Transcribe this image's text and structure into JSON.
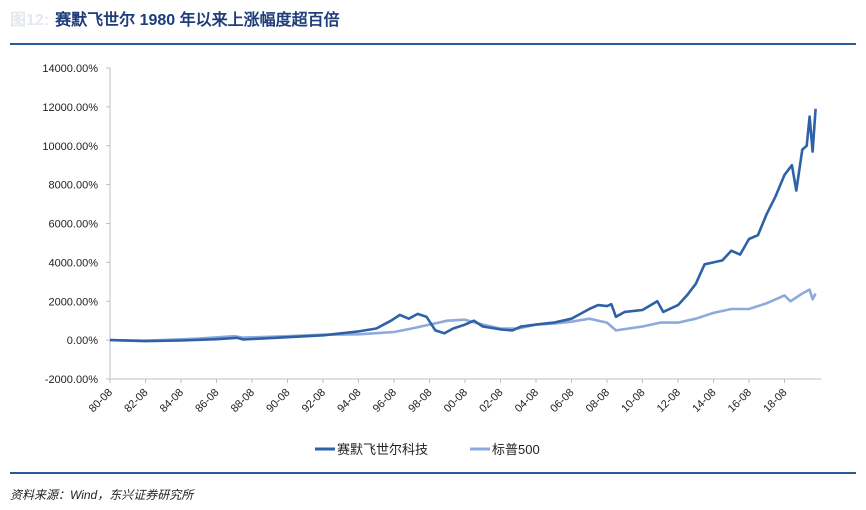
{
  "header": {
    "prefix": "图12:",
    "title": "赛默飞世尔 1980 年以来上涨幅度超百倍"
  },
  "footer": {
    "source": "资料来源：Wind，东兴证券研究所"
  },
  "chart_data": {
    "type": "line",
    "title": "赛默飞世尔 1980 年以来上涨幅度超百倍",
    "ylim": [
      -2000,
      14000
    ],
    "yticks": [
      -2000,
      0,
      2000,
      4000,
      6000,
      8000,
      10000,
      12000,
      14000
    ],
    "ytick_labels": [
      "-2000.00%",
      "0.00%",
      "2000.00%",
      "4000.00%",
      "6000.00%",
      "8000.00%",
      "10000.00%",
      "12000.00%",
      "14000.00%"
    ],
    "xtick_labels": [
      "80-08",
      "82-08",
      "84-08",
      "86-08",
      "88-08",
      "90-08",
      "92-08",
      "94-08",
      "96-08",
      "98-08",
      "00-08",
      "02-08",
      "04-08",
      "06-08",
      "08-08",
      "10-08",
      "12-08",
      "14-08",
      "16-08",
      "18-08"
    ],
    "grid": false,
    "legend": "bottom",
    "series": [
      {
        "name": "赛默飞世尔科技",
        "color": "#2e62a8",
        "points": [
          [
            "1980-08",
            0
          ],
          [
            "1982-08",
            -50
          ],
          [
            "1984-08",
            -20
          ],
          [
            "1986-08",
            50
          ],
          [
            "1987-10",
            120
          ],
          [
            "1988-02",
            30
          ],
          [
            "1990-08",
            150
          ],
          [
            "1992-08",
            250
          ],
          [
            "1994-08",
            450
          ],
          [
            "1995-08",
            600
          ],
          [
            "1996-06",
            1000
          ],
          [
            "1996-12",
            1300
          ],
          [
            "1997-06",
            1100
          ],
          [
            "1997-12",
            1350
          ],
          [
            "1998-06",
            1200
          ],
          [
            "1998-12",
            500
          ],
          [
            "1999-06",
            350
          ],
          [
            "1999-12",
            600
          ],
          [
            "2000-08",
            800
          ],
          [
            "2001-02",
            1000
          ],
          [
            "2001-08",
            700
          ],
          [
            "2002-08",
            550
          ],
          [
            "2003-04",
            500
          ],
          [
            "2003-10",
            700
          ],
          [
            "2004-08",
            800
          ],
          [
            "2005-08",
            900
          ],
          [
            "2006-08",
            1100
          ],
          [
            "2007-02",
            1350
          ],
          [
            "2007-08",
            1600
          ],
          [
            "2008-02",
            1800
          ],
          [
            "2008-08",
            1750
          ],
          [
            "2008-11",
            1850
          ],
          [
            "2009-02",
            1200
          ],
          [
            "2009-08",
            1450
          ],
          [
            "2010-08",
            1550
          ],
          [
            "2011-06",
            2000
          ],
          [
            "2011-10",
            1450
          ],
          [
            "2012-08",
            1800
          ],
          [
            "2013-02",
            2300
          ],
          [
            "2013-08",
            2900
          ],
          [
            "2014-02",
            3900
          ],
          [
            "2014-08",
            4000
          ],
          [
            "2015-02",
            4100
          ],
          [
            "2015-08",
            4600
          ],
          [
            "2016-02",
            4400
          ],
          [
            "2016-08",
            5200
          ],
          [
            "2017-02",
            5400
          ],
          [
            "2017-08",
            6500
          ],
          [
            "2018-02",
            7400
          ],
          [
            "2018-08",
            8500
          ],
          [
            "2019-01",
            9000
          ],
          [
            "2019-04",
            7700
          ],
          [
            "2019-08",
            9800
          ],
          [
            "2019-11",
            10000
          ],
          [
            "2020-01",
            11500
          ],
          [
            "2020-03",
            9700
          ],
          [
            "2020-05",
            11900
          ]
        ]
      },
      {
        "name": "标普500",
        "color": "#8eaadb",
        "points": [
          [
            "1980-08",
            0
          ],
          [
            "1982-08",
            -30
          ],
          [
            "1985-08",
            80
          ],
          [
            "1987-08",
            200
          ],
          [
            "1988-02",
            130
          ],
          [
            "1990-08",
            200
          ],
          [
            "1992-08",
            280
          ],
          [
            "1994-08",
            300
          ],
          [
            "1996-08",
            420
          ],
          [
            "1997-08",
            600
          ],
          [
            "1998-08",
            800
          ],
          [
            "1999-08",
            1000
          ],
          [
            "2000-08",
            1050
          ],
          [
            "2001-08",
            800
          ],
          [
            "2002-08",
            600
          ],
          [
            "2003-08",
            600
          ],
          [
            "2004-08",
            800
          ],
          [
            "2005-08",
            850
          ],
          [
            "2006-08",
            950
          ],
          [
            "2007-08",
            1100
          ],
          [
            "2008-08",
            900
          ],
          [
            "2009-02",
            500
          ],
          [
            "2010-08",
            700
          ],
          [
            "2011-08",
            900
          ],
          [
            "2012-08",
            900
          ],
          [
            "2013-08",
            1100
          ],
          [
            "2014-08",
            1400
          ],
          [
            "2015-08",
            1600
          ],
          [
            "2016-08",
            1600
          ],
          [
            "2017-08",
            1900
          ],
          [
            "2018-08",
            2300
          ],
          [
            "2018-12",
            2000
          ],
          [
            "2019-08",
            2400
          ],
          [
            "2020-01",
            2600
          ],
          [
            "2020-03",
            2100
          ],
          [
            "2020-05",
            2400
          ]
        ]
      }
    ]
  }
}
